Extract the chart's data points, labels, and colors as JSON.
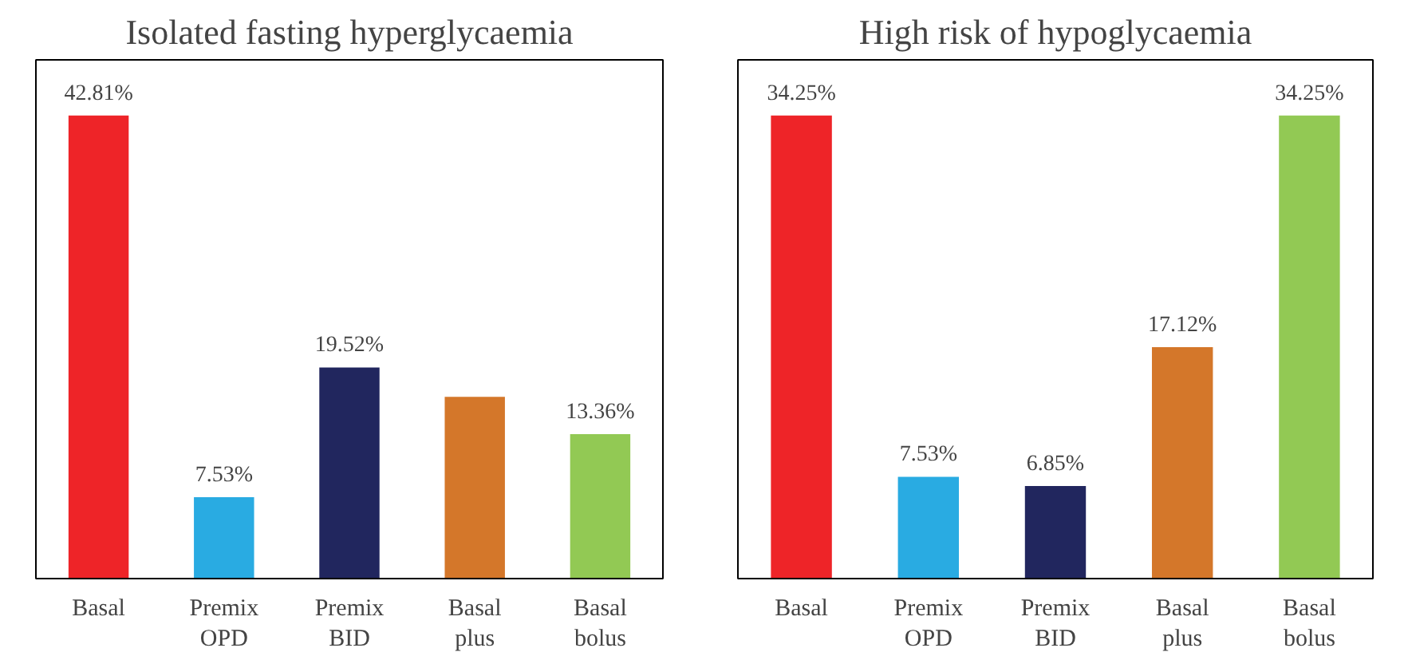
{
  "chart_data": [
    {
      "type": "bar",
      "title": "Isolated fasting hyperglycaemia",
      "categories": [
        "Basal",
        "Premix OPD",
        "Premix BID",
        "Basal plus",
        "Basal bolus"
      ],
      "values": [
        42.81,
        7.53,
        19.52,
        16.8,
        13.36
      ],
      "colors": [
        "#ee2428",
        "#29abe2",
        "#21265e",
        "#d4772a",
        "#92c954"
      ],
      "value_labels": [
        "42.81%",
        "7.53%",
        "19.52%",
        null,
        "13.36%"
      ],
      "grid": false,
      "tick_labels": "x"
    },
    {
      "type": "bar",
      "title": "High risk of hypoglycaemia",
      "categories": [
        "Basal",
        "Premix OPD",
        "Premix BID",
        "Basal plus",
        "Basal bolus"
      ],
      "values": [
        34.25,
        7.53,
        6.85,
        17.12,
        34.25
      ],
      "colors": [
        "#ee2428",
        "#29abe2",
        "#21265e",
        "#d4772a",
        "#92c954"
      ],
      "value_labels": [
        "34.25%",
        "7.53%",
        "6.85%",
        "17.12%",
        "34.25%"
      ],
      "grid": false,
      "tick_labels": "x"
    }
  ]
}
